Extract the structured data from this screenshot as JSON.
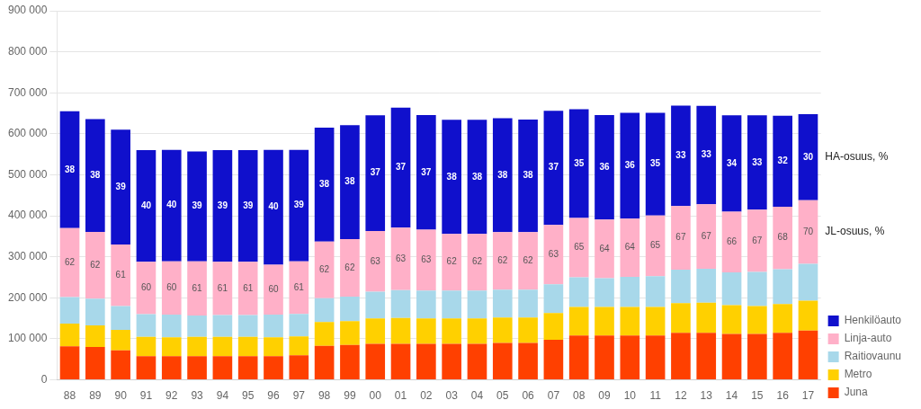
{
  "chart_data": {
    "type": "bar",
    "stacked": true,
    "categories": [
      "88",
      "89",
      "90",
      "91",
      "92",
      "93",
      "94",
      "95",
      "96",
      "97",
      "98",
      "99",
      "00",
      "01",
      "02",
      "03",
      "04",
      "05",
      "06",
      "07",
      "08",
      "09",
      "10",
      "11",
      "12",
      "13",
      "14",
      "15",
      "16",
      "17"
    ],
    "series": [
      {
        "name": "Juna",
        "color": "#FF4000",
        "values": [
          82000,
          80000,
          72000,
          58000,
          58000,
          58000,
          58000,
          58000,
          58000,
          60000,
          83000,
          85000,
          88000,
          88000,
          88000,
          88000,
          88000,
          90000,
          90000,
          98000,
          108000,
          108000,
          108000,
          108000,
          115000,
          115000,
          112000,
          112000,
          115000,
          120000
        ]
      },
      {
        "name": "Metro",
        "color": "#FFD000",
        "values": [
          55000,
          53000,
          50000,
          47000,
          46000,
          47000,
          47000,
          47000,
          46000,
          46000,
          58000,
          58000,
          62000,
          63000,
          62000,
          62000,
          62000,
          62000,
          62000,
          65000,
          70000,
          70000,
          70000,
          70000,
          72000,
          73000,
          70000,
          68000,
          70000,
          73000
        ]
      },
      {
        "name": "Raitiovaunu",
        "color": "#A8D8EA",
        "values": [
          65000,
          65000,
          58000,
          55000,
          55000,
          52000,
          53000,
          53000,
          55000,
          55000,
          58000,
          60000,
          65000,
          68000,
          68000,
          68000,
          68000,
          68000,
          68000,
          70000,
          72000,
          70000,
          73000,
          75000,
          82000,
          83000,
          80000,
          83000,
          85000,
          90000
        ]
      },
      {
        "name": "Linja-auto",
        "color": "#FFB0C8",
        "values": [
          168000,
          163000,
          150000,
          128000,
          130000,
          132000,
          130000,
          130000,
          122000,
          128000,
          138000,
          140000,
          148000,
          152000,
          148000,
          138000,
          138000,
          140000,
          140000,
          145000,
          145000,
          143000,
          142000,
          148000,
          155000,
          157000,
          148000,
          152000,
          152000,
          155000
        ],
        "shares": [
          62,
          62,
          61,
          60,
          60,
          61,
          61,
          61,
          60,
          61,
          62,
          62,
          63,
          63,
          63,
          62,
          62,
          62,
          62,
          63,
          65,
          64,
          64,
          65,
          67,
          67,
          66,
          67,
          68,
          70
        ],
        "shares_label": "JL-osuus, %"
      },
      {
        "name": "Henkilöauto",
        "color": "#1010CC",
        "values": [
          285000,
          275000,
          280000,
          272000,
          272000,
          268000,
          272000,
          272000,
          280000,
          272000,
          278000,
          278000,
          282000,
          293000,
          280000,
          278000,
          278000,
          278000,
          275000,
          278000,
          265000,
          255000,
          258000,
          250000,
          245000,
          240000,
          235000,
          230000,
          222000,
          210000
        ],
        "shares": [
          38,
          38,
          39,
          40,
          40,
          39,
          39,
          39,
          40,
          39,
          38,
          38,
          37,
          37,
          37,
          38,
          38,
          38,
          38,
          37,
          35,
          36,
          36,
          35,
          33,
          33,
          34,
          33,
          32,
          30
        ],
        "shares_label": "HA-osuus, %"
      }
    ],
    "ylim": [
      0,
      900000
    ],
    "yticks": [
      0,
      {
        "value": 100000,
        "label": "100 000"
      },
      {
        "value": 200000,
        "label": "200 000"
      },
      {
        "value": 300000,
        "label": "300 000"
      },
      {
        "value": 400000,
        "label": "400 000"
      },
      {
        "value": 500000,
        "label": "500 000"
      },
      {
        "value": 600000,
        "label": "600 000"
      },
      {
        "value": 700000,
        "label": "700 000"
      },
      {
        "value": 800000,
        "label": "800 000"
      },
      {
        "value": 900000,
        "label": "900 000"
      }
    ],
    "grid": true,
    "legend": "lower right"
  }
}
